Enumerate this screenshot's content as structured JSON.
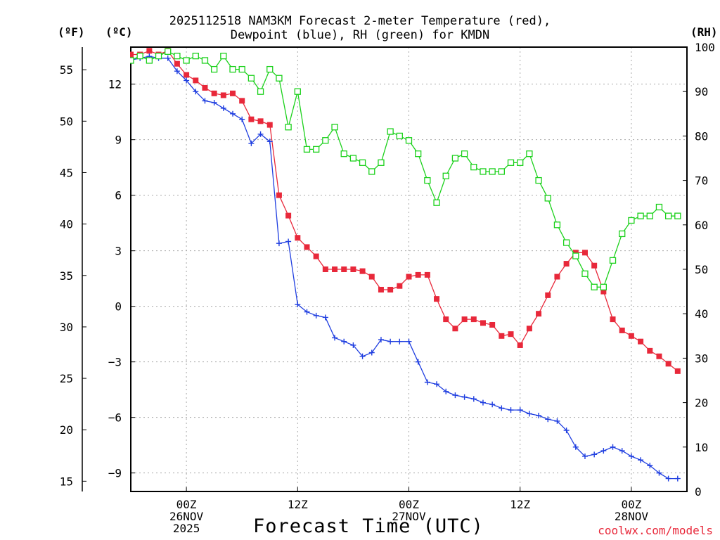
{
  "chart_data": {
    "type": "line",
    "title_line1": "2025112518 NAM3KM Forecast 2-meter Temperature (red),",
    "title_line2": "Dewpoint (blue), RH (green) for KMDN",
    "unit_f": "(ºF)",
    "unit_c": "(ºC)",
    "unit_rh": "(RH)",
    "xlabel": "Forecast Time (UTC)",
    "credit": "coolwx.com/models",
    "x_start_hour": 18,
    "x_end_hour": 78,
    "x_ticks": [
      {
        "hour": 24,
        "lines": [
          "00Z",
          "26NOV",
          "2025"
        ]
      },
      {
        "hour": 36,
        "lines": [
          "12Z"
        ]
      },
      {
        "hour": 48,
        "lines": [
          "00Z",
          "27NOV"
        ]
      },
      {
        "hour": 60,
        "lines": [
          "12Z"
        ]
      },
      {
        "hour": 72,
        "lines": [
          "00Z",
          "28NOV"
        ]
      }
    ],
    "ylim_c": [
      -10,
      14
    ],
    "yticks_c": [
      "12",
      "9",
      "6",
      "3",
      "0",
      "−3",
      "−6",
      "−9"
    ],
    "yticks_c_values": [
      12,
      9,
      6,
      3,
      0,
      -3,
      -6,
      -9
    ],
    "yticks_f": [
      "55",
      "50",
      "45",
      "40",
      "35",
      "30",
      "25",
      "20",
      "15"
    ],
    "yticks_f_values": [
      55,
      50,
      45,
      40,
      35,
      30,
      25,
      20,
      15
    ],
    "ylim_rh": [
      0,
      100
    ],
    "yticks_rh": [
      "100",
      "90",
      "80",
      "70",
      "60",
      "50",
      "40",
      "30",
      "20",
      "10",
      "0"
    ],
    "yticks_rh_values": [
      100,
      90,
      80,
      70,
      60,
      50,
      40,
      30,
      20,
      10,
      0
    ],
    "colors": {
      "temperature": "#e8283a",
      "dewpoint": "#1f3ee0",
      "rh": "#1bd11b",
      "grid": "#a8a8a8"
    },
    "series": [
      {
        "name": "Temperature",
        "axis": "c",
        "marker": "filled-square",
        "values": [
          13.6,
          13.6,
          13.8,
          13.6,
          13.8,
          13.1,
          12.5,
          12.2,
          11.8,
          11.5,
          11.4,
          11.5,
          11.1,
          10.1,
          10.0,
          9.8,
          6.0,
          4.9,
          3.7,
          3.2,
          2.7,
          2.0,
          2.0,
          2.0,
          2.0,
          1.9,
          1.6,
          0.9,
          0.9,
          1.1,
          1.6,
          1.7,
          1.7,
          0.4,
          -0.7,
          -1.2,
          -0.7,
          -0.7,
          -0.9,
          -1.0,
          -1.6,
          -1.5,
          -2.1,
          -1.2,
          -0.4,
          0.6,
          1.6,
          2.3,
          2.9,
          2.9,
          2.2,
          0.8,
          -0.7,
          -1.3,
          -1.6,
          -1.9,
          -2.4,
          -2.7,
          -3.1,
          -3.5
        ]
      },
      {
        "name": "Dewpoint",
        "axis": "c",
        "marker": "plus",
        "values": [
          13.3,
          13.4,
          13.5,
          13.4,
          13.4,
          12.7,
          12.2,
          11.6,
          11.1,
          11.0,
          10.7,
          10.4,
          10.1,
          8.8,
          9.3,
          8.9,
          3.4,
          3.5,
          0.1,
          -0.3,
          -0.5,
          -0.6,
          -1.7,
          -1.9,
          -2.1,
          -2.7,
          -2.5,
          -1.8,
          -1.9,
          -1.9,
          -1.9,
          -3.0,
          -4.1,
          -4.2,
          -4.6,
          -4.8,
          -4.9,
          -5.0,
          -5.2,
          -5.3,
          -5.5,
          -5.6,
          -5.6,
          -5.8,
          -5.9,
          -6.1,
          -6.2,
          -6.7,
          -7.6,
          -8.1,
          -8.0,
          -7.8,
          -7.6,
          -7.8,
          -8.1,
          -8.3,
          -8.6,
          -9.0,
          -9.3,
          -9.3
        ]
      },
      {
        "name": "RH",
        "axis": "rh",
        "marker": "hollow-square",
        "values": [
          97,
          98,
          97,
          98,
          99,
          98,
          97,
          98,
          97,
          95,
          98,
          95,
          95,
          93,
          90,
          95,
          93,
          82,
          90,
          77,
          77,
          79,
          82,
          76,
          75,
          74,
          72,
          74,
          81,
          80,
          79,
          76,
          70,
          65,
          71,
          75,
          76,
          73,
          72,
          72,
          72,
          74,
          74,
          76,
          70,
          66,
          60,
          56,
          53,
          49,
          46,
          46,
          52,
          58,
          61,
          62,
          62,
          64,
          62,
          62
        ]
      }
    ]
  }
}
